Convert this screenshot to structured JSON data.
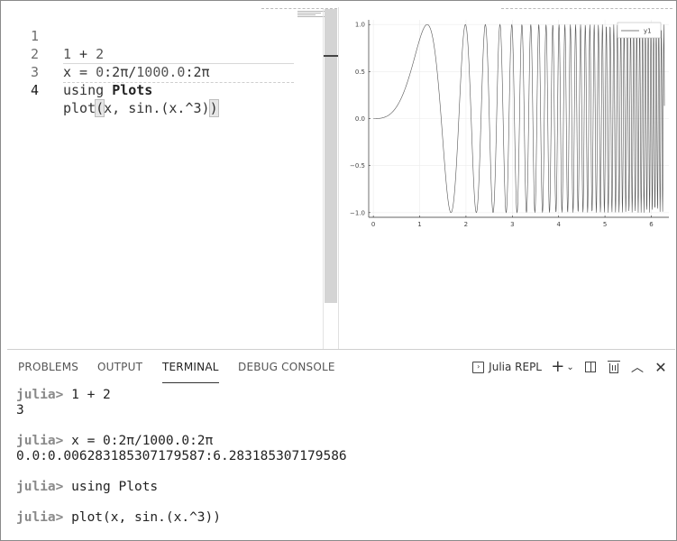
{
  "editor": {
    "lines": [
      {
        "number": "1",
        "code": [
          "1",
          " + ",
          "2"
        ]
      },
      {
        "number": "2",
        "code": [
          "x",
          " = ",
          "0",
          ":2π/",
          "1000.0",
          ":2π"
        ]
      },
      {
        "number": "3",
        "code": [
          "using ",
          "Plots"
        ]
      },
      {
        "number": "4",
        "code": [
          "plot",
          "(",
          "x, sin.(x.^3)",
          ")"
        ]
      }
    ]
  },
  "plot": {
    "legend_label": "y1"
  },
  "chart_data": {
    "type": "line",
    "function": "sin(x^3)",
    "x_range": [
      0,
      6.283185307179586
    ],
    "x_step": 0.006283185307179587,
    "xlim": [
      -0.1,
      6.38
    ],
    "ylim": [
      -1.05,
      1.05
    ],
    "x_ticks": [
      "0",
      "1",
      "2",
      "3",
      "4",
      "5",
      "6"
    ],
    "y_ticks": [
      "1.0",
      "0.5",
      "0.0",
      "−0.5",
      "−1.0"
    ],
    "series": [
      {
        "name": "y1",
        "color": "#555555"
      }
    ],
    "grid": true,
    "legend_position": "top-right"
  },
  "panel": {
    "tabs": [
      "PROBLEMS",
      "OUTPUT",
      "TERMINAL",
      "DEBUG CONSOLE"
    ],
    "active_tab": "TERMINAL",
    "terminal_name": "Julia REPL"
  },
  "terminal": {
    "prompt": "julia>",
    "entries": [
      {
        "input": " 1 + 2",
        "output": "3"
      },
      {
        "input": " x = 0:2π/1000.0:2π",
        "output": "0.0:0.006283185307179587:6.283185307179586"
      },
      {
        "input": " using Plots",
        "output": ""
      },
      {
        "input": " plot(x, sin.(x.^3))",
        "output": ""
      }
    ]
  }
}
